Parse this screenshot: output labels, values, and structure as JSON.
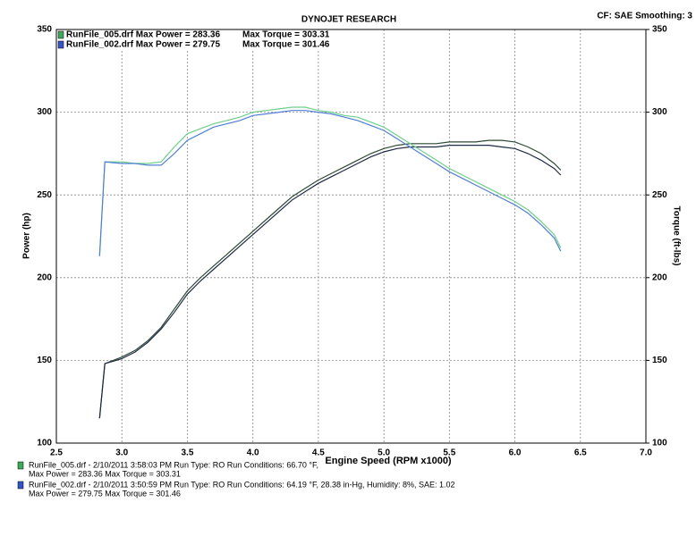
{
  "chart_data": {
    "type": "line",
    "title": "DYNOJET RESEARCH",
    "settings_label": "CF: SAE  Smoothing: 3",
    "x_label": "Engine Speed (RPM x1000)",
    "y_label": "Power (hp)",
    "y2_label": "Torque (ft-lbs)",
    "legend": [
      {
        "file": "RunFile_005.drf Max Power = 283.36",
        "torque": "Max Torque = 303.31",
        "color": "#3fa85a"
      },
      {
        "file": "RunFile_002.drf Max Power = 279.75",
        "torque": "Max Torque = 301.46",
        "color": "#3554c8"
      }
    ],
    "notes": [
      {
        "line1": "RunFile_005.drf - 2/10/2011 3:58:03 PM  Run Type: RO  Run Conditions: 66.70 °F,",
        "line2": "Max Power = 283.36  Max Torque = 303.31",
        "color": "#3fa85a"
      },
      {
        "line1": "RunFile_002.drf - 2/10/2011 3:50:59 PM  Run Type: RO  Run Conditions: 64.19 °F, 28.38 in-Hg,  Humidity:  8%, SAE: 1.02",
        "line2": "Max Power = 279.75  Max Torque = 301.46",
        "color": "#3554c8"
      }
    ],
    "x": [
      2.83,
      2.87,
      3.0,
      3.1,
      3.2,
      3.3,
      3.4,
      3.5,
      3.6,
      3.7,
      3.8,
      3.9,
      4.0,
      4.1,
      4.2,
      4.3,
      4.4,
      4.5,
      4.6,
      4.7,
      4.8,
      4.9,
      5.0,
      5.1,
      5.2,
      5.3,
      5.4,
      5.5,
      5.6,
      5.7,
      5.8,
      5.9,
      6.0,
      6.1,
      6.2,
      6.3,
      6.35
    ],
    "series": [
      {
        "color": "#2c4a34",
        "values": [
          115,
          148,
          152,
          156,
          162,
          170,
          181,
          192,
          200,
          207,
          214,
          221,
          228,
          235,
          242,
          249,
          254,
          259,
          263,
          267,
          271,
          275,
          278,
          280,
          281,
          281,
          281,
          282,
          282,
          282,
          283,
          283,
          282,
          279,
          275,
          269,
          265
        ]
      },
      {
        "color": "#202a44",
        "values": [
          115,
          148,
          151,
          155,
          161,
          169,
          179,
          190,
          198,
          205,
          212,
          219,
          226,
          233,
          240,
          247,
          252,
          257,
          261,
          265,
          269,
          273,
          276,
          278,
          279,
          279,
          279,
          280,
          280,
          280,
          280,
          279,
          278,
          275,
          271,
          266,
          262
        ]
      },
      {
        "color": "#6fcf8a",
        "axis": "y2",
        "values": [
          213,
          270,
          270,
          269,
          269,
          270,
          279,
          287,
          290,
          293,
          295,
          297,
          300,
          301,
          302,
          303,
          303,
          301,
          300,
          298,
          297,
          294,
          291,
          286,
          281,
          276,
          271,
          266,
          262,
          258,
          254,
          250,
          246,
          241,
          234,
          226,
          218
        ]
      },
      {
        "color": "#4f7fd4",
        "axis": "y2",
        "values": [
          213,
          270,
          269,
          269,
          268,
          268,
          275,
          283,
          287,
          291,
          293,
          295,
          298,
          299,
          300,
          301,
          301,
          300,
          299,
          297,
          295,
          292,
          289,
          284,
          279,
          274,
          269,
          264,
          260,
          256,
          252,
          248,
          244,
          239,
          232,
          224,
          216
        ]
      }
    ],
    "xlim": [
      2.5,
      7.0
    ],
    "xticks": [
      2.5,
      {
        "value": 3,
        "label": "3.0"
      },
      3.5,
      {
        "value": 4,
        "label": "4.0"
      },
      4.5,
      {
        "value": 5,
        "label": "5.0"
      },
      5.5,
      {
        "value": 6,
        "label": "6.0"
      },
      6.5,
      {
        "value": 7,
        "label": "7.0"
      }
    ],
    "ylim": [
      100,
      350
    ],
    "yticks": [
      100,
      150,
      200,
      250,
      300,
      350
    ],
    "y2lim": [
      100,
      350
    ],
    "y2ticks": [
      100,
      150,
      200,
      250,
      300,
      350
    ],
    "grid": true
  }
}
